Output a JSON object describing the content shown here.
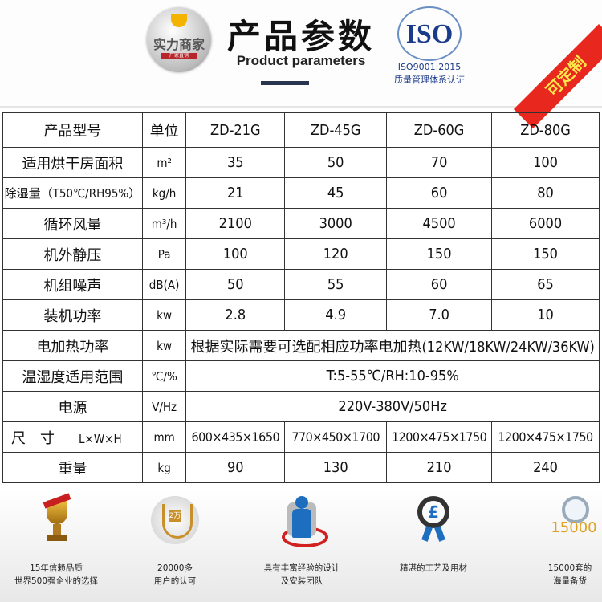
{
  "header": {
    "logo_text": "实力商家",
    "logo_ribbon": "厂家直销",
    "title": "产品参数",
    "subtitle": "Product parameters",
    "iso_mark": "ISO",
    "iso_cert": "ISO9001:2015",
    "iso_desc": "质量管理体系认证",
    "corner_badge": "可定制"
  },
  "table": {
    "headers": [
      "产品型号",
      "单位",
      "ZD-21G",
      "ZD-45G",
      "ZD-60G",
      "ZD-80G"
    ],
    "rows": [
      {
        "label": "适用烘干房面积",
        "unit": "m²",
        "values": [
          "35",
          "50",
          "70",
          "100"
        ]
      },
      {
        "label": "除湿量（T50℃/RH95%）",
        "unit": "kg/h",
        "values": [
          "21",
          "45",
          "60",
          "80"
        ]
      },
      {
        "label": "循环风量",
        "unit": "m³/h",
        "values": [
          "2100",
          "3000",
          "4500",
          "6000"
        ]
      },
      {
        "label": "机外静压",
        "unit": "Pa",
        "values": [
          "100",
          "120",
          "150",
          "150"
        ]
      },
      {
        "label": "机组噪声",
        "unit": "dB(A)",
        "values": [
          "50",
          "55",
          "60",
          "65"
        ]
      },
      {
        "label": "装机功率",
        "unit": "kw",
        "values": [
          "2.8",
          "4.9",
          "7.0",
          "10"
        ]
      }
    ],
    "span_rows": [
      {
        "label": "电加热功率",
        "unit": "kw",
        "value": "根据实际需要可选配相应功率电加热(12KW/18KW/24KW/36KW)"
      },
      {
        "label": "温湿度适用范围",
        "unit": "℃/%",
        "value": "T:5-55℃/RH:10-95%"
      },
      {
        "label": "电源",
        "unit": "V/Hz",
        "value": "220V-380V/50Hz"
      }
    ],
    "size_row": {
      "label": "尺　寸",
      "sub": "L×W×H",
      "unit": "mm",
      "values": [
        "600×435×1650",
        "770×450×1700",
        "1200×475×1750",
        "1200×475×1750"
      ]
    },
    "weight_row": {
      "label": "重量",
      "unit": "kg",
      "values": [
        "90",
        "130",
        "210",
        "240"
      ]
    }
  },
  "footer": [
    {
      "icon": "trophy-icon",
      "lines": [
        "15年信赖品质",
        "世界500强企业的选择"
      ]
    },
    {
      "icon": "laurel-badge-icon",
      "badge": "2万",
      "lines": [
        "20000多",
        "用户的认可"
      ]
    },
    {
      "icon": "team-icon",
      "lines": [
        "具有丰富经验的设计",
        "及安装团队"
      ]
    },
    {
      "icon": "award-ribbon-icon",
      "badge": "£",
      "lines": [
        "精湛的工艺及用材"
      ]
    },
    {
      "icon": "magnifier-icon",
      "badge": "15000",
      "lines": [
        "15000套的",
        "海量备货"
      ]
    }
  ]
}
